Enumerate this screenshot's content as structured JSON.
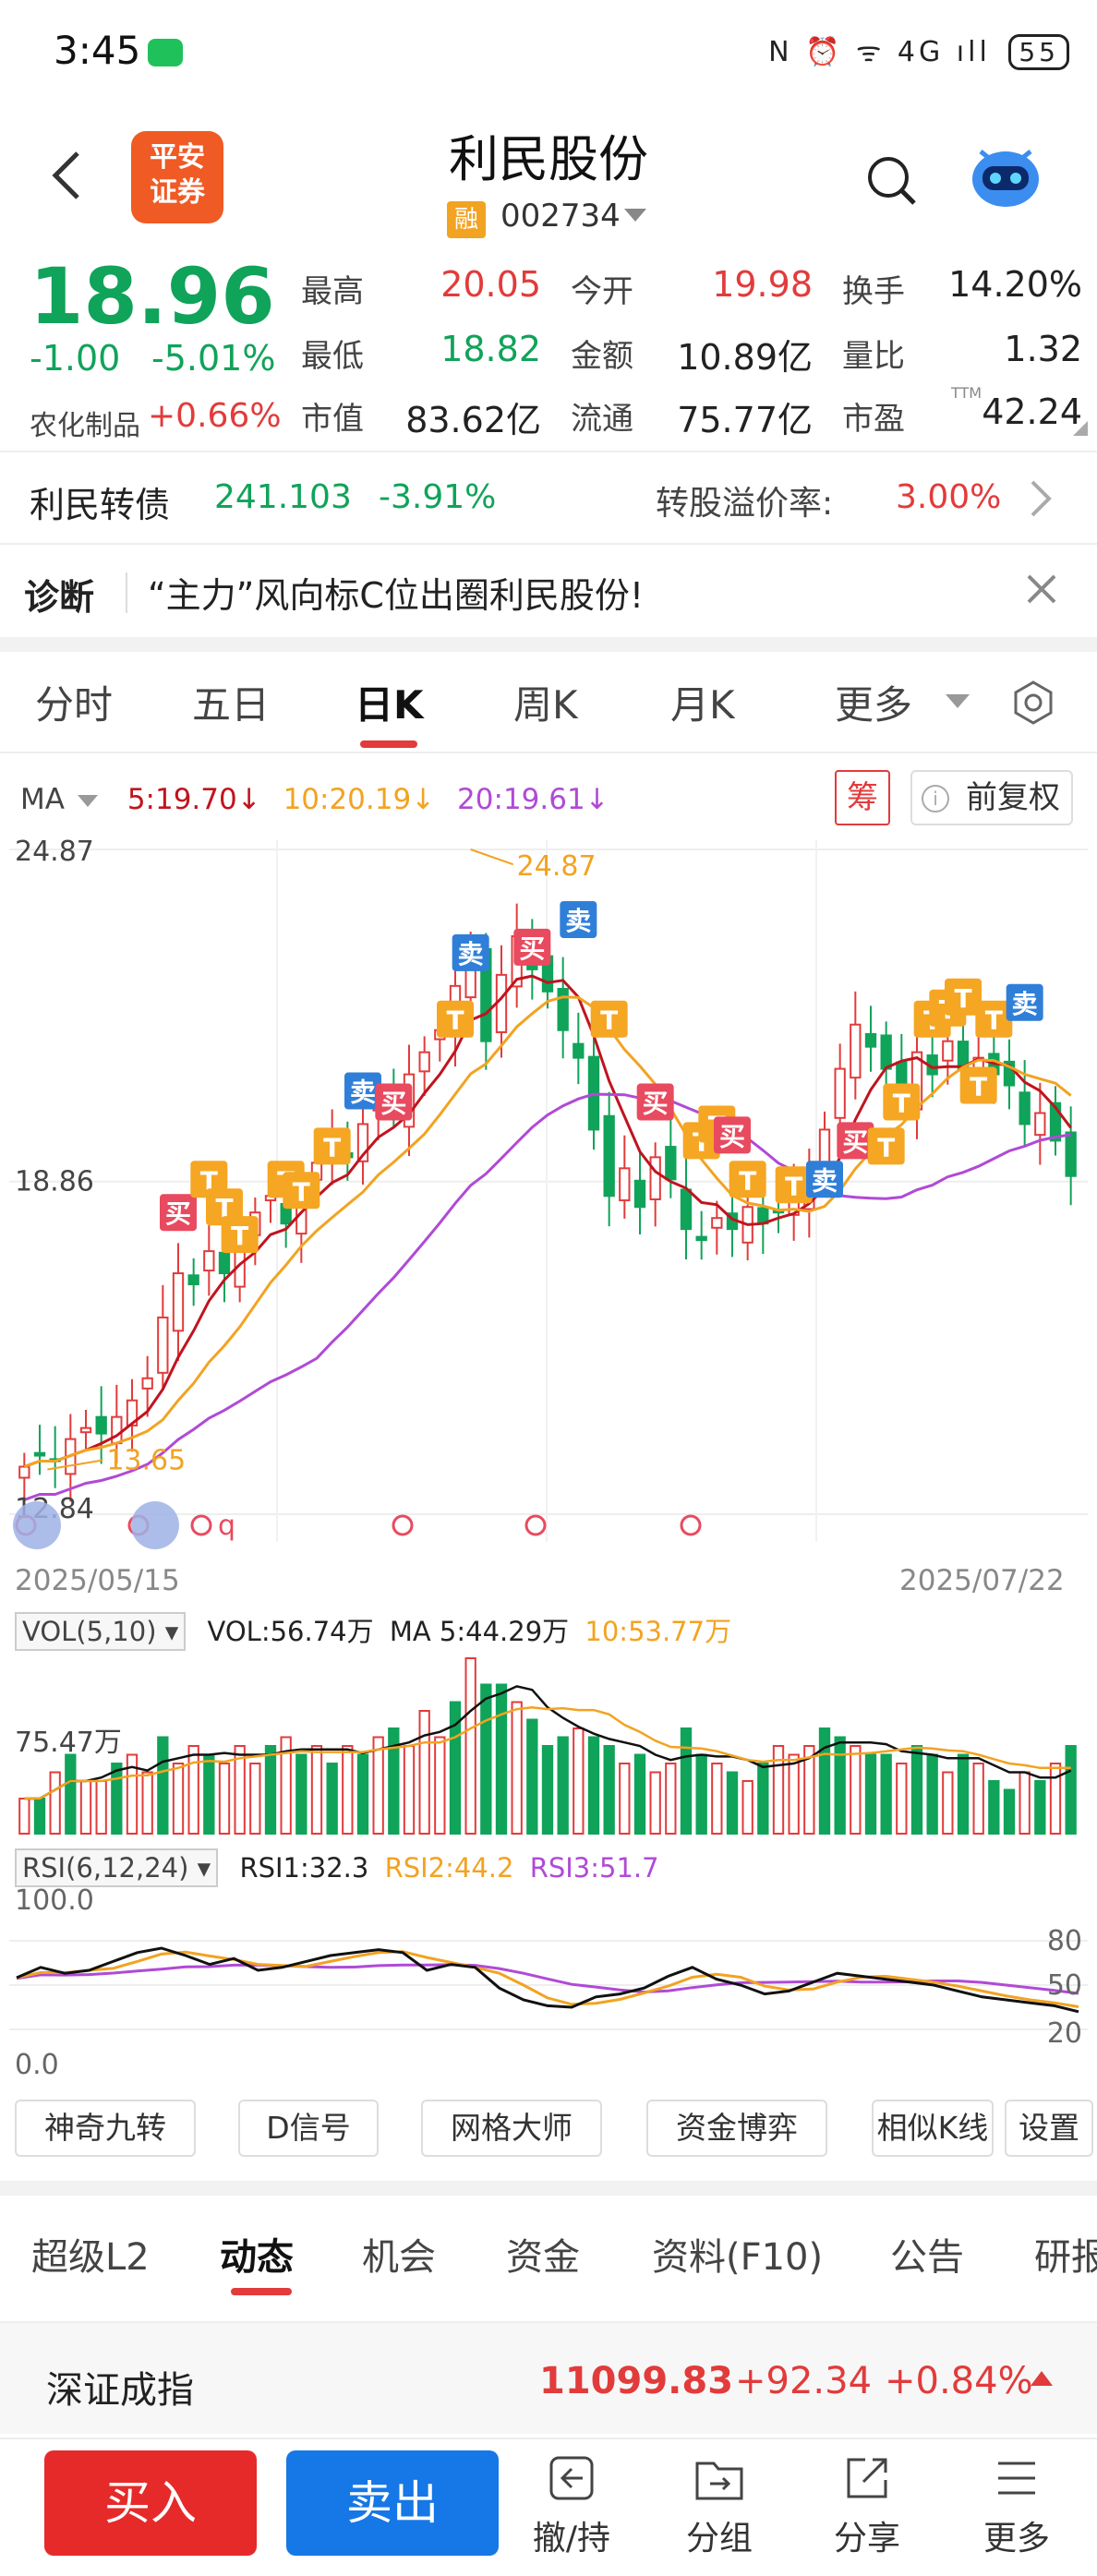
{
  "status_bar": {
    "time": "3:45",
    "icons": "N ⏰ ᯤ 4G ıll",
    "battery": "55"
  },
  "header": {
    "broker_logo": [
      "平安",
      "证券"
    ],
    "stock_name": "利民股份",
    "margin_badge": "融",
    "stock_code": "002734"
  },
  "quote": {
    "price": "18.96",
    "change_abs": "-1.00",
    "change_pct": "-5.01%",
    "sector_name": "农化制品",
    "sector_pct": "+0.66%",
    "fields": [
      {
        "label": "最高",
        "value": "20.05",
        "color": "#e23b3b"
      },
      {
        "label": "今开",
        "value": "19.98",
        "color": "#e23b3b"
      },
      {
        "label": "换手",
        "value": "14.20%",
        "color": "#222222"
      },
      {
        "label": "最低",
        "value": "18.82",
        "color": "#10a35a"
      },
      {
        "label": "金额",
        "value": "10.89亿",
        "color": "#222222"
      },
      {
        "label": "量比",
        "value": "1.32",
        "color": "#222222"
      },
      {
        "label": "市值",
        "value": "83.62亿",
        "color": "#222222"
      },
      {
        "label": "流通",
        "value": "75.77亿",
        "color": "#222222"
      },
      {
        "label": "市盈",
        "value": "42.24",
        "color": "#222222"
      }
    ],
    "ttm_tag": "TTM"
  },
  "convertible_bond": {
    "name": "利民转债",
    "price": "241.103",
    "pct": "-3.91%",
    "premium_label": "转股溢价率:",
    "premium_value": "3.00%"
  },
  "diagnosis": {
    "label": "诊断",
    "text": "“主力”风向标C位出圈利民股份!"
  },
  "period_tabs": [
    "分时",
    "五日",
    "日K",
    "周K",
    "月K",
    "更多"
  ],
  "active_period": "日K",
  "ma_row": {
    "label": "MA",
    "ma5": "5:19.70↓",
    "ma10": "10:20.19↓",
    "ma20": "20:19.61↓",
    "chip": "筹",
    "adjust": "前复权",
    "info_glyph": "i"
  },
  "kline": {
    "y_top_label": "24.87",
    "y_mid_label": "18.86",
    "y_bottom_label": "12.84",
    "high_marker": "24.87",
    "low_marker": "13.65",
    "date_start": "2025/05/15",
    "date_end": "2025/07/22",
    "signal_labels": {
      "buy": "买",
      "sell": "卖",
      "t": "T",
      "q": "q"
    }
  },
  "chart_data": {
    "type": "candlestick",
    "ylim": [
      12.84,
      24.87
    ],
    "x": [
      "2025/05/15",
      "2025/07/22"
    ],
    "high": 24.87,
    "low": 13.65,
    "last_close": 18.96,
    "ma": {
      "ma5": 19.7,
      "ma10": 20.19,
      "ma20": 19.61
    }
  },
  "volume": {
    "indicator": "VOL(5,10)",
    "vol": "VOL:56.74万",
    "ma5": "MA 5:44.29万",
    "ma10": "10:53.77万",
    "axis_label": "75.47万"
  },
  "rsi": {
    "indicator": "RSI(6,12,24)",
    "rsi1": "RSI1:32.3",
    "rsi2": "RSI2:44.2",
    "rsi3": "RSI3:51.7",
    "left_top": "100.0",
    "left_bottom": "0.0",
    "right_80": "80",
    "right_50": "50",
    "right_20": "20"
  },
  "tools": [
    "神奇九转",
    "D信号",
    "网格大师",
    "资金博弈",
    "相似K线",
    "设置"
  ],
  "content_tabs": [
    "超级L2",
    "动态",
    "机会",
    "资金",
    "资料(F10)",
    "公告",
    "研报"
  ],
  "active_content_tab": "动态",
  "index_row": {
    "name": "深证成指",
    "value": "11099.83",
    "change": "+92.34",
    "pct": "+0.84%"
  },
  "bottom_bar": {
    "buy": "买入",
    "sell": "卖出",
    "nav": [
      "撤/持",
      "分组",
      "分享",
      "更多"
    ]
  },
  "colors": {
    "up": "#e23b3b",
    "down": "#10a35a",
    "ma5": "#c0141e",
    "ma10": "#f2a321",
    "ma20": "#b04ad6",
    "buy_btn": "#e62a2a",
    "sell_btn": "#1677e6"
  }
}
